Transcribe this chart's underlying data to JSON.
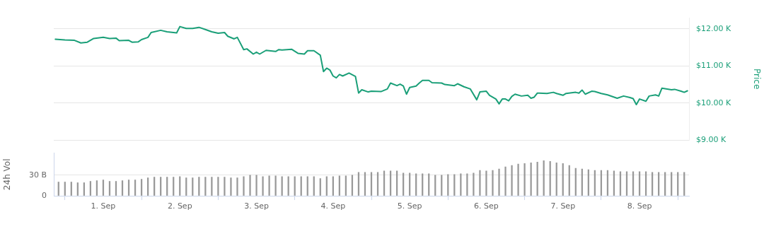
{
  "chart_data": [
    {
      "type": "line",
      "ylabel": "Price",
      "tick_labels": "y",
      "grid": "y",
      "x": [
        "--08-31T09:00",
        "--08-31T12:00",
        "--08-31T15:00",
        "--08-31T17:00",
        "--08-31T19:00",
        "--08-31T21:00",
        "--09-01T00:00",
        "--09-01T02:00",
        "--09-01T04:00",
        "--09-01T05:00",
        "--09-01T08:00",
        "--09-01T09:00",
        "--09-01T11:00",
        "--09-01T12:00",
        "--09-01T14:00",
        "--09-01T15:00",
        "--09-01T18:00",
        "--09-01T20:00",
        "--09-01T23:00",
        "--09-02T00:00",
        "--09-02T02:00",
        "--09-02T04:00",
        "--09-02T06:00",
        "--09-02T08:00",
        "--09-02T10:00",
        "--09-02T12:00",
        "--09-02T14:00",
        "--09-02T15:00",
        "--09-02T17:00",
        "--09-02T18:00",
        "--09-02T20:00",
        "--09-02T21:00",
        "--09-02T23:00",
        "--09-03T00:00",
        "--09-03T01:00",
        "--09-03T03:00",
        "--09-03T06:00",
        "--09-03T07:00",
        "--09-03T08:00",
        "--09-03T11:00",
        "--09-03T13:00",
        "--09-03T15:00",
        "--09-03T16:00",
        "--09-03T18:00",
        "--09-03T20:00",
        "--09-03T21:00",
        "--09-03T22:00",
        "--09-03T23:00",
        "--09-04T00:00",
        "--09-04T01:00",
        "--09-04T02:00",
        "--09-04T03:00",
        "--09-04T05:00",
        "--09-04T07:00",
        "--09-04T08:00",
        "--09-04T09:00",
        "--09-04T11:00",
        "--09-04T12:00",
        "--09-04T15:00",
        "--09-04T17:00",
        "--09-04T18:00",
        "--09-04T20:00",
        "--09-04T21:00",
        "--09-04T22:00",
        "--09-04T23:00",
        "--09-05T00:00",
        "--09-05T02:00",
        "--09-05T03:00",
        "--09-05T04:00",
        "--09-05T06:00",
        "--09-05T07:00",
        "--09-05T10:00",
        "--09-05T11:00",
        "--09-05T14:00",
        "--09-05T15:00",
        "--09-05T17:00",
        "--09-05T19:00",
        "--09-05T21:00",
        "--09-05T22:00",
        "--09-06T00:00",
        "--09-06T01:00",
        "--09-06T03:00",
        "--09-06T04:00",
        "--09-06T05:00",
        "--09-06T06:00",
        "--09-06T07:00",
        "--09-06T08:00",
        "--09-06T09:00",
        "--09-06T11:00",
        "--09-06T13:00",
        "--09-06T14:00",
        "--09-06T15:00",
        "--09-06T16:00",
        "--09-06T19:00",
        "--09-06T21:00",
        "--09-06T22:00",
        "--09-07T00:00",
        "--09-07T01:00",
        "--09-07T04:00",
        "--09-07T05:00",
        "--09-07T06:00",
        "--09-07T07:00",
        "--09-07T09:00",
        "--09-07T10:00",
        "--09-07T12:00",
        "--09-07T14:00",
        "--09-07T17:00",
        "--09-07T19:00",
        "--09-07T21:00",
        "--09-07T22:00",
        "--09-07T23:00",
        "--09-08T00:00",
        "--09-08T02:00",
        "--09-08T03:00",
        "--09-08T05:00",
        "--09-08T06:00",
        "--09-08T07:00",
        "--09-08T10:00",
        "--09-08T11:00",
        "--09-08T13:00",
        "--09-08T14:00",
        "--09-08T15:00"
      ],
      "series": [
        {
          "color": "#1a9f78",
          "values": [
            11720,
            11700,
            11690,
            11620,
            11640,
            11740,
            11770,
            11740,
            11750,
            11680,
            11690,
            11640,
            11650,
            11710,
            11770,
            11900,
            11960,
            11920,
            11890,
            12060,
            12010,
            12010,
            12040,
            11980,
            11920,
            11880,
            11900,
            11800,
            11730,
            11770,
            11440,
            11460,
            11320,
            11370,
            11320,
            11420,
            11390,
            11440,
            11430,
            11450,
            11340,
            11320,
            11410,
            11410,
            11290,
            10850,
            10940,
            10890,
            10730,
            10680,
            10770,
            10730,
            10810,
            10720,
            10270,
            10360,
            10300,
            10320,
            10310,
            10380,
            10540,
            10470,
            10510,
            10460,
            10240,
            10420,
            10460,
            10540,
            10610,
            10610,
            10550,
            10540,
            10500,
            10470,
            10520,
            10440,
            10380,
            10090,
            10300,
            10320,
            10210,
            10110,
            9980,
            10110,
            10110,
            10060,
            10180,
            10240,
            10190,
            10210,
            10130,
            10160,
            10270,
            10260,
            10290,
            10260,
            10210,
            10260,
            10290,
            10270,
            10350,
            10240,
            10320,
            10310,
            10260,
            10220,
            10130,
            10190,
            10150,
            10120,
            9960,
            10110,
            10050,
            10190,
            10220,
            10190,
            10400,
            10360,
            10370,
            10320,
            10290,
            10330
          ]
        }
      ],
      "xlim": [
        "--08-31T08:30",
        "--09-08T15:30"
      ],
      "ylim": [
        9000,
        12300
      ],
      "yticks": [
        {
          "value": 9000,
          "label": "$9.00 K"
        },
        {
          "value": 10000,
          "label": "$10.00 K"
        },
        {
          "value": 11000,
          "label": "$11.00 K"
        },
        {
          "value": 12000,
          "label": "$12.00 K"
        }
      ]
    },
    {
      "type": "bar",
      "ylabel": "24h Vol",
      "grid": "y",
      "x": [
        "--08-31T10:00",
        "--08-31T12:00",
        "--08-31T14:00",
        "--08-31T16:00",
        "--08-31T18:00",
        "--08-31T20:00",
        "--08-31T22:00",
        "--09-01T00:00",
        "--09-01T02:00",
        "--09-01T04:00",
        "--09-01T06:00",
        "--09-01T08:00",
        "--09-01T10:00",
        "--09-01T12:00",
        "--09-01T14:00",
        "--09-01T16:00",
        "--09-01T18:00",
        "--09-01T20:00",
        "--09-01T22:00",
        "--09-02T00:00",
        "--09-02T02:00",
        "--09-02T04:00",
        "--09-02T06:00",
        "--09-02T08:00",
        "--09-02T10:00",
        "--09-02T12:00",
        "--09-02T14:00",
        "--09-02T16:00",
        "--09-02T18:00",
        "--09-02T20:00",
        "--09-02T22:00",
        "--09-03T00:00",
        "--09-03T02:00",
        "--09-03T04:00",
        "--09-03T06:00",
        "--09-03T08:00",
        "--09-03T10:00",
        "--09-03T12:00",
        "--09-03T14:00",
        "--09-03T16:00",
        "--09-03T18:00",
        "--09-03T20:00",
        "--09-03T22:00",
        "--09-04T00:00",
        "--09-04T02:00",
        "--09-04T04:00",
        "--09-04T06:00",
        "--09-04T08:00",
        "--09-04T10:00",
        "--09-04T12:00",
        "--09-04T14:00",
        "--09-04T16:00",
        "--09-04T18:00",
        "--09-04T20:00",
        "--09-04T22:00",
        "--09-05T00:00",
        "--09-05T02:00",
        "--09-05T04:00",
        "--09-05T06:00",
        "--09-05T08:00",
        "--09-05T10:00",
        "--09-05T12:00",
        "--09-05T14:00",
        "--09-05T16:00",
        "--09-05T18:00",
        "--09-05T20:00",
        "--09-05T22:00",
        "--09-06T00:00",
        "--09-06T02:00",
        "--09-06T04:00",
        "--09-06T06:00",
        "--09-06T08:00",
        "--09-06T10:00",
        "--09-06T12:00",
        "--09-06T14:00",
        "--09-06T16:00",
        "--09-06T18:00",
        "--09-06T20:00",
        "--09-06T22:00",
        "--09-07T00:00",
        "--09-07T02:00",
        "--09-07T04:00",
        "--09-07T06:00",
        "--09-07T08:00",
        "--09-07T10:00",
        "--09-07T12:00",
        "--09-07T14:00",
        "--09-07T16:00",
        "--09-07T18:00",
        "--09-07T20:00",
        "--09-07T22:00",
        "--09-08T00:00",
        "--09-08T02:00",
        "--09-08T04:00",
        "--09-08T06:00",
        "--09-08T08:00",
        "--09-08T10:00",
        "--09-08T12:00",
        "--09-08T14:00"
      ],
      "values": [
        20,
        20,
        20,
        19,
        19,
        21,
        22,
        23,
        21,
        21,
        22,
        23,
        23,
        24,
        26,
        27,
        27,
        27,
        27,
        28,
        26,
        26,
        27,
        27,
        27,
        27,
        27,
        26,
        26,
        28,
        30,
        30,
        28,
        29,
        29,
        28,
        28,
        28,
        28,
        28,
        28,
        25,
        28,
        28,
        29,
        29,
        30,
        34,
        34,
        34,
        34,
        36,
        36,
        36,
        33,
        33,
        32,
        32,
        32,
        30,
        30,
        31,
        31,
        32,
        32,
        33,
        37,
        36,
        37,
        39,
        42,
        44,
        46,
        47,
        48,
        49,
        51,
        50,
        48,
        47,
        44,
        40,
        39,
        38,
        37,
        37,
        37,
        36,
        35,
        35,
        35,
        35,
        35,
        34,
        34,
        34,
        34,
        34,
        34
      ],
      "color": "#999999",
      "xlim": [
        "--08-31T08:30",
        "--09-08T15:30"
      ],
      "xticks": [
        {
          "value": "--09-01",
          "label": "1. Sep"
        },
        {
          "value": "--09-02",
          "label": "2. Sep"
        },
        {
          "value": "--09-03",
          "label": "3. Sep"
        },
        {
          "value": "--09-04",
          "label": "4. Sep"
        },
        {
          "value": "--09-05",
          "label": "5. Sep"
        },
        {
          "value": "--09-06",
          "label": "6. Sep"
        },
        {
          "value": "--09-07",
          "label": "7. Sep"
        },
        {
          "value": "--09-08",
          "label": "8. Sep"
        }
      ],
      "ylim": [
        0,
        62
      ],
      "yticks": [
        {
          "value": 0,
          "label": "0"
        },
        {
          "value": 30,
          "label": "30 B"
        }
      ]
    }
  ]
}
